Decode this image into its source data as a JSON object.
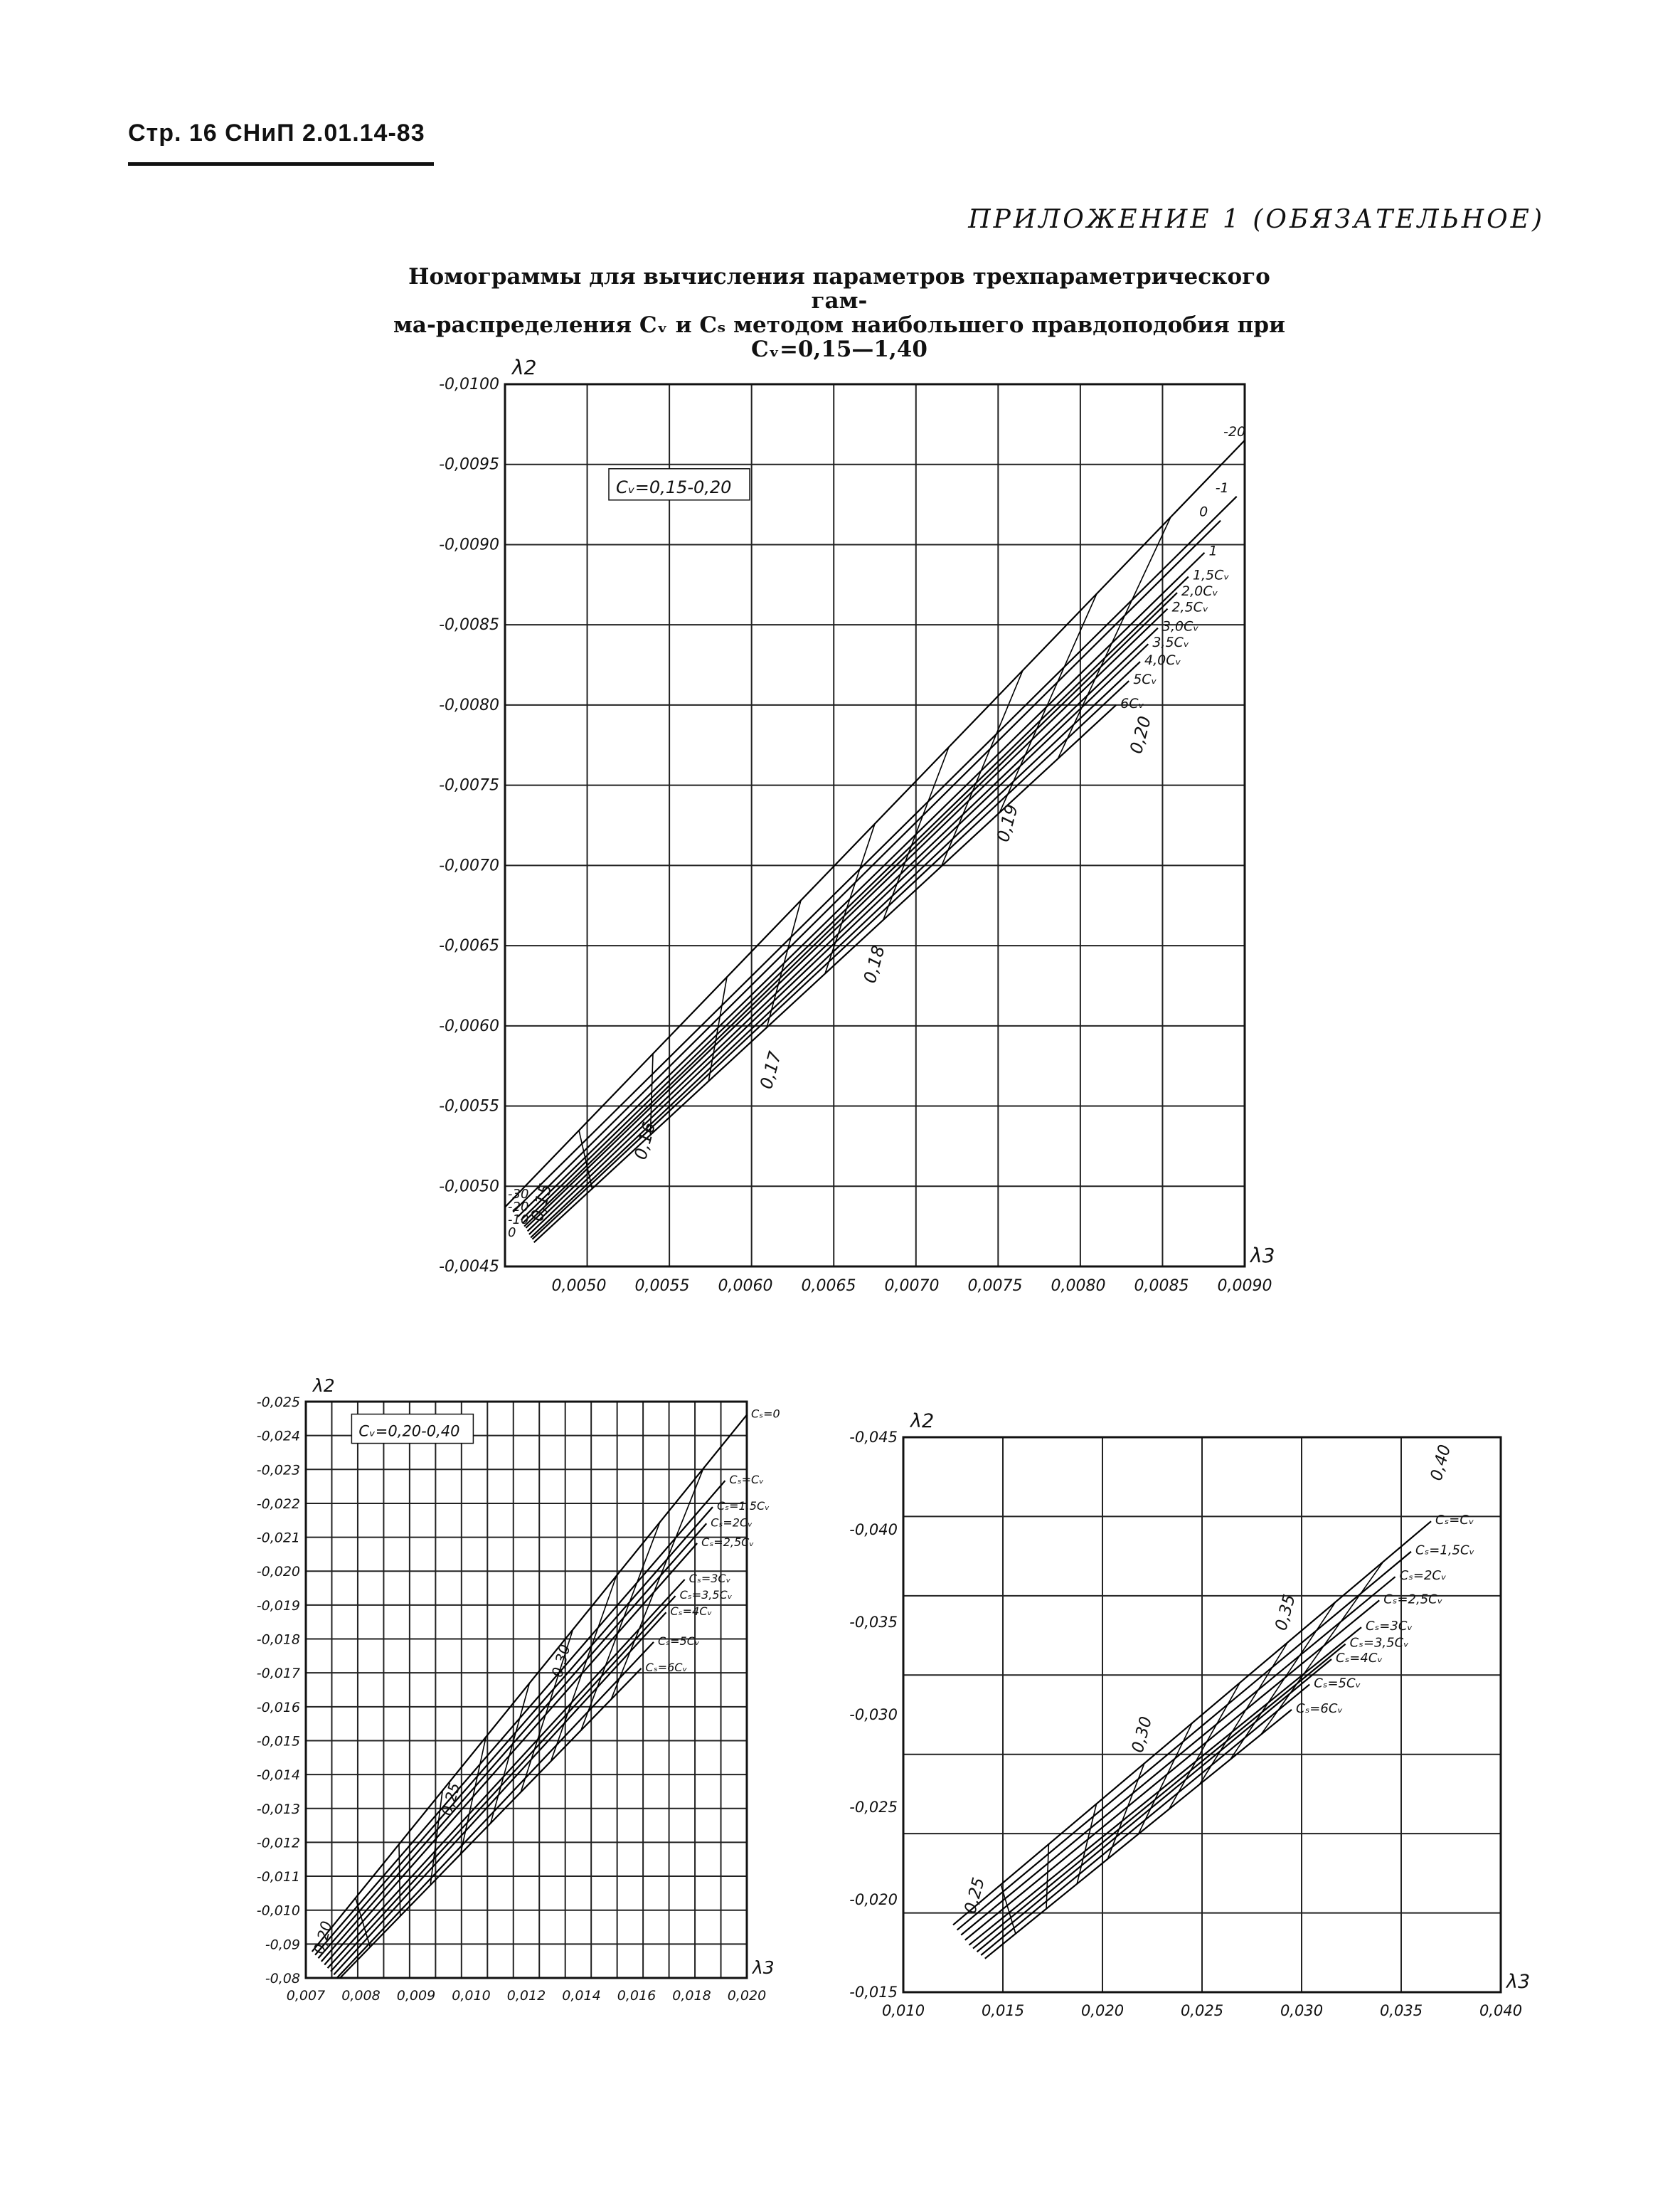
{
  "page": {
    "header": "Стр. 16  СНиП 2.01.14-83",
    "appendix": "ПРИЛОЖЕНИЕ 1 (ОБЯЗАТЕЛЬНОЕ)",
    "title_line1": "Номограммы для вычисления параметров трехпараметрического гам-",
    "title_line2": "ма-распределения Cᵥ и Cₛ методом наибольшего правдоподобия при",
    "title_line3": "Cᵥ=0,15—1,40"
  },
  "chart_data": [
    {
      "type": "line",
      "xlabel": "λ3",
      "ylabel": "λ2",
      "note": "Cᵥ=0,15-0,20",
      "xlim": [
        0.0046,
        0.0092
      ],
      "ylim": [
        -0.0045,
        -0.01
      ],
      "x_ticks": [
        "0,0050",
        "0,0055",
        "0,0060",
        "0,0065",
        "0,0070",
        "0,0075",
        "0,0080",
        "0,0085",
        "0,0090"
      ],
      "y_ticks": [
        "-0,0100",
        "-0,0095",
        "-0,0090",
        "-0,0085",
        "-0,0080",
        "-0,0075",
        "-0,0070",
        "-0,0065",
        "-0,0060",
        "-0,0055",
        "-0,0050",
        "-0,0045"
      ],
      "cv_labels": [
        "0,15",
        "0,16",
        "0,17",
        "0,18",
        "0,19",
        "0,20"
      ],
      "cs_labels": [
        "-20",
        "-1",
        "0",
        "1",
        "1,5Cᵥ",
        "2,0Cᵥ",
        "2,5Cᵥ",
        "3,0Cᵥ",
        "3,5Cᵥ",
        "4,0Cᵥ",
        "5Cᵥ",
        "6Cᵥ"
      ],
      "left_labels": [
        "-30",
        "-20",
        "-10",
        "0"
      ],
      "series": [
        {
          "name": "-20",
          "x": [
            0.0046,
            0.0092
          ],
          "y": [
            -0.00487,
            -0.00965
          ]
        },
        {
          "name": "-1",
          "x": [
            0.00465,
            0.00915
          ],
          "y": [
            -0.00484,
            -0.0093
          ]
        },
        {
          "name": "0",
          "x": [
            0.00468,
            0.00905
          ],
          "y": [
            -0.00481,
            -0.00915
          ]
        },
        {
          "name": "1",
          "x": [
            0.0047,
            0.00895
          ],
          "y": [
            -0.00479,
            -0.00895
          ]
        },
        {
          "name": "1,5Cᵥ",
          "x": [
            0.00471,
            0.00885
          ],
          "y": [
            -0.00477,
            -0.0088
          ]
        },
        {
          "name": "2,0Cᵥ",
          "x": [
            0.00472,
            0.00878
          ],
          "y": [
            -0.00475,
            -0.0087
          ]
        },
        {
          "name": "2,5Cᵥ",
          "x": [
            0.00473,
            0.00872
          ],
          "y": [
            -0.00474,
            -0.0086
          ]
        },
        {
          "name": "3,0Cᵥ",
          "x": [
            0.00474,
            0.00866
          ],
          "y": [
            -0.00472,
            -0.00848
          ]
        },
        {
          "name": "3,5Cᵥ",
          "x": [
            0.00475,
            0.0086
          ],
          "y": [
            -0.0047,
            -0.00838
          ]
        },
        {
          "name": "4,0Cᵥ",
          "x": [
            0.00476,
            0.00855
          ],
          "y": [
            -0.00468,
            -0.00827
          ]
        },
        {
          "name": "5Cᵥ",
          "x": [
            0.00477,
            0.00848
          ],
          "y": [
            -0.00467,
            -0.00815
          ]
        },
        {
          "name": "6Cᵥ",
          "x": [
            0.00478,
            0.0084
          ],
          "y": [
            -0.00465,
            -0.008
          ]
        }
      ]
    },
    {
      "type": "line",
      "xlabel": "λ3",
      "ylabel": "λ2",
      "note": "Cᵥ=0,20-0,40",
      "xlim": [
        0.007,
        0.0212
      ],
      "ylim": [
        -0.0075,
        -0.025
      ],
      "x_ticks": [
        "0,007",
        "0,008",
        "0,009",
        "0,010",
        "0,012",
        "0,014",
        "0,016",
        "0,018",
        "0,020"
      ],
      "y_ticks": [
        "-0,025",
        "-0,024",
        "-0,023",
        "-0,022",
        "-0,021",
        "-0,020",
        "-0,019",
        "-0,018",
        "-0,017",
        "-0,016",
        "-0,015",
        "-0,014",
        "-0,013",
        "-0,012",
        "-0,011",
        "-0,010",
        "-0,09",
        "-0,08"
      ],
      "cv_labels": [
        "0,20",
        "0,25",
        "0,30"
      ],
      "cs_labels": [
        "Cₛ=0",
        "Cₛ=Cᵥ",
        "Cₛ=1,5Cᵥ",
        "Cₛ=2Cᵥ",
        "Cₛ=2,5Cᵥ",
        "Cₛ=3Cᵥ",
        "Cₛ=3,5Cᵥ",
        "Cₛ=4Cᵥ",
        "Cₛ=5Cᵥ",
        "Cₛ=6Cᵥ"
      ],
      "series": [
        {
          "name": "Cₛ=0",
          "x": [
            0.0072,
            0.0212
          ],
          "y": [
            -0.0083,
            -0.0246
          ]
        },
        {
          "name": "Cₛ=Cᵥ",
          "x": [
            0.0073,
            0.0205
          ],
          "y": [
            -0.0082,
            -0.0226
          ]
        },
        {
          "name": "Cₛ=1,5Cᵥ",
          "x": [
            0.0074,
            0.0201
          ],
          "y": [
            -0.0081,
            -0.0218
          ]
        },
        {
          "name": "Cₛ=2Cᵥ",
          "x": [
            0.0075,
            0.0199
          ],
          "y": [
            -0.008,
            -0.0213
          ]
        },
        {
          "name": "Cₛ=2,5Cᵥ",
          "x": [
            0.0076,
            0.0196
          ],
          "y": [
            -0.0079,
            -0.0207
          ]
        },
        {
          "name": "Cₛ=3Cᵥ",
          "x": [
            0.0077,
            0.0192
          ],
          "y": [
            -0.0078,
            -0.0196
          ]
        },
        {
          "name": "Cₛ=3,5Cᵥ",
          "x": [
            0.0078,
            0.0189
          ],
          "y": [
            -0.0077,
            -0.0191
          ]
        },
        {
          "name": "Cₛ=4Cᵥ",
          "x": [
            0.0079,
            0.0186
          ],
          "y": [
            -0.0076,
            -0.0186
          ]
        },
        {
          "name": "Cₛ=5Cᵥ",
          "x": [
            0.008,
            0.0182
          ],
          "y": [
            -0.0075,
            -0.0177
          ]
        },
        {
          "name": "Cₛ=6Cᵥ",
          "x": [
            0.0081,
            0.0178
          ],
          "y": [
            -0.0075,
            -0.0169
          ]
        }
      ]
    },
    {
      "type": "line",
      "xlabel": "λ3",
      "ylabel": "λ2",
      "xlim": [
        0.01,
        0.04
      ],
      "ylim": [
        -0.012,
        -0.045
      ],
      "x_ticks": [
        "0,010",
        "0,015",
        "0,020",
        "0,025",
        "0,030",
        "0,035",
        "0,040"
      ],
      "y_ticks": [
        "-0,045",
        "-0,040",
        "-0,035",
        "-0,030",
        "-0,025",
        "-0,020",
        "-0,015"
      ],
      "cv_labels": [
        "0,25",
        "0,30",
        "0,35",
        "0,40"
      ],
      "cs_labels": [
        "Cₛ=Cᵥ",
        "Cₛ=1,5Cᵥ",
        "Cₛ=2Cᵥ",
        "Cₛ=2,5Cᵥ",
        "Cₛ=3Cᵥ",
        "Cₛ=3,5Cᵥ",
        "Cₛ=4Cᵥ",
        "Cₛ=5Cᵥ",
        "Cₛ=6Cᵥ"
      ],
      "series": [
        {
          "name": "Cₛ=Cᵥ",
          "x": [
            0.0125,
            0.0365
          ],
          "y": [
            -0.016,
            -0.04
          ]
        },
        {
          "name": "Cₛ=1,5Cᵥ",
          "x": [
            0.0127,
            0.0355
          ],
          "y": [
            -0.0157,
            -0.0382
          ]
        },
        {
          "name": "Cₛ=2Cᵥ",
          "x": [
            0.0129,
            0.0347
          ],
          "y": [
            -0.0154,
            -0.0367
          ]
        },
        {
          "name": "Cₛ=2,5Cᵥ",
          "x": [
            0.0131,
            0.0339
          ],
          "y": [
            -0.0151,
            -0.0353
          ]
        },
        {
          "name": "Cₛ=3Cᵥ",
          "x": [
            0.0133,
            0.033
          ],
          "y": [
            -0.0148,
            -0.0337
          ]
        },
        {
          "name": "Cₛ=3,5Cᵥ",
          "x": [
            0.0135,
            0.0322
          ],
          "y": [
            -0.0146,
            -0.0327
          ]
        },
        {
          "name": "Cₛ=4Cᵥ",
          "x": [
            0.0137,
            0.0315
          ],
          "y": [
            -0.0144,
            -0.0318
          ]
        },
        {
          "name": "Cₛ=5Cᵥ",
          "x": [
            0.0139,
            0.0304
          ],
          "y": [
            -0.0142,
            -0.0303
          ]
        },
        {
          "name": "Cₛ=6Cᵥ",
          "x": [
            0.0141,
            0.0295
          ],
          "y": [
            -0.014,
            -0.0288
          ]
        }
      ]
    }
  ]
}
